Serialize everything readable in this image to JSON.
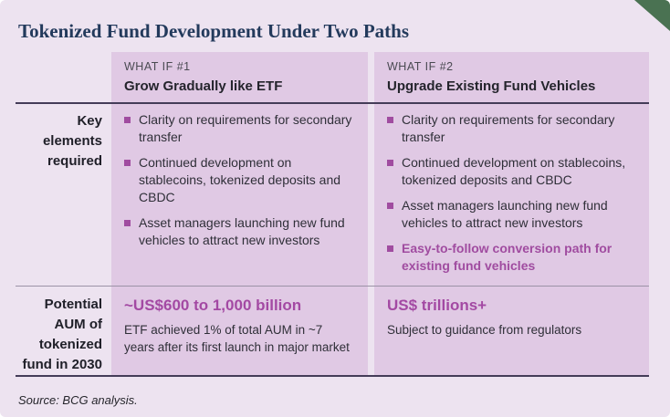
{
  "header": {
    "title": "Tokenized Fund Development Under Two Paths"
  },
  "table": {
    "row_labels": {
      "key_elements": "Key elements required",
      "potential_aum": "Potential AUM of tokenized fund in 2030"
    },
    "columns": [
      {
        "eyebrow": "WHAT IF #1",
        "name": "Grow Gradually like ETF",
        "bullets": [
          "Clarity on requirements for secondary transfer",
          "Continued development on stablecoins, tokenized deposits and CBDC",
          "Asset managers launching new fund vehicles to attract new investors"
        ],
        "aum_headline": "~US$600 to 1,000 billion",
        "aum_note": "ETF achieved 1% of total AUM in ~7 years after its first launch in major market"
      },
      {
        "eyebrow": "WHAT IF #2",
        "name": "Upgrade Existing Fund Vehicles",
        "bullets": [
          "Clarity on requirements for secondary transfer",
          "Continued development on stablecoins, tokenized deposits and CBDC",
          "Asset managers launching new fund vehicles to attract new investors",
          "Easy-to-follow conversion path for existing fund vehicles"
        ],
        "aum_headline": "US$ trillions+",
        "aum_note": "Subject to guidance from regulators"
      }
    ]
  },
  "footer": {
    "source": "Source: BCG analysis."
  },
  "colors": {
    "page_background": "#EDE3F0",
    "column_background": "#E0C9E4",
    "accent_purple": "#A04CA0",
    "title_navy": "#233A5C",
    "dark_rule": "#443C58",
    "row_divider": "#9C93A6",
    "corner_green": "#4A7252"
  }
}
